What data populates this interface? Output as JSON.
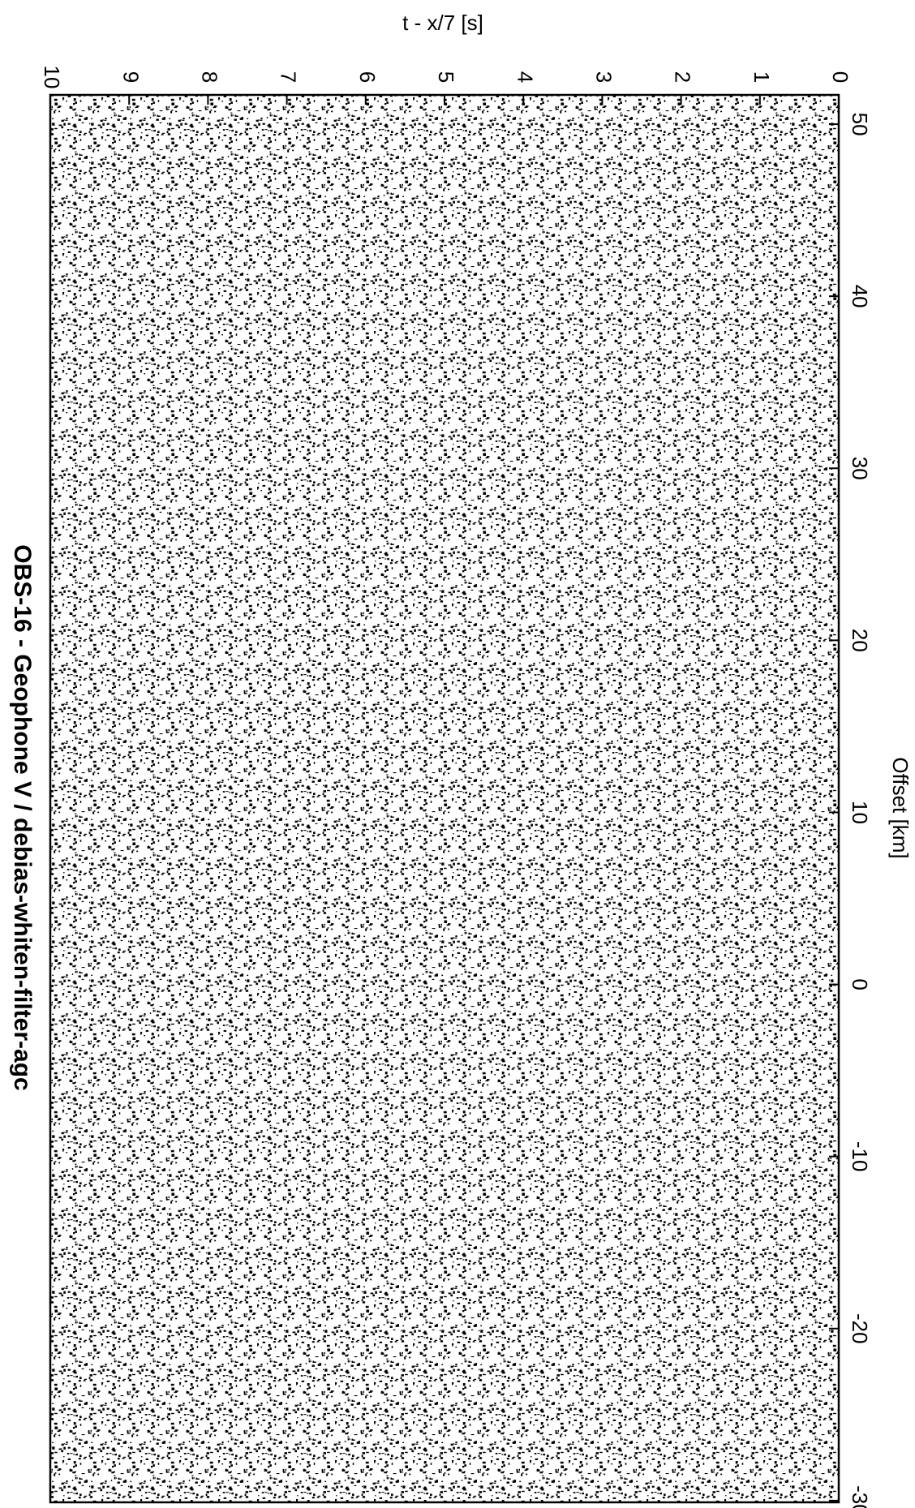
{
  "chart_data": {
    "type": "seismic",
    "title": "OBS-16  - Geophone V / debias-whiten-filter-agc",
    "xlabel": "Offset [km]",
    "ylabel": "t - x/7 [s]",
    "xlim": [
      51.7,
      -30.1
    ],
    "xticks": [
      50,
      40,
      30,
      20,
      10,
      0,
      -10,
      -20,
      -30
    ],
    "ylim": [
      0,
      10
    ],
    "yticks": [
      0,
      1,
      2,
      3,
      4,
      5,
      6,
      7,
      8,
      9,
      10
    ]
  }
}
